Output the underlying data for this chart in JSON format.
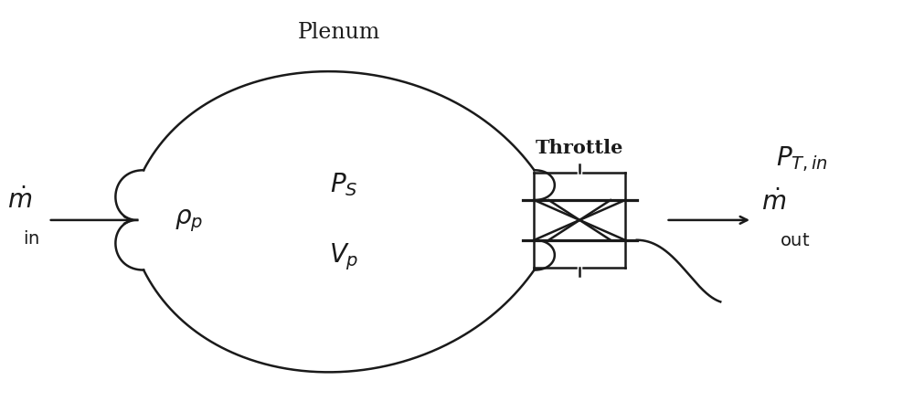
{
  "bg_color": "#ffffff",
  "line_color": "#1a1a1a",
  "plenum_label": "Plenum",
  "throttle_label": "Throttle",
  "figsize": [
    10.0,
    4.52
  ],
  "dpi": 100
}
